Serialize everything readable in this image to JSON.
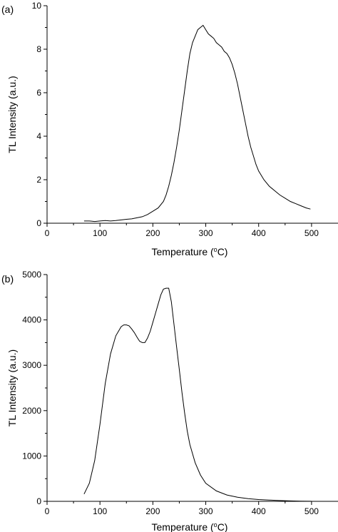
{
  "chart_data": [
    {
      "type": "line",
      "panel_label": "(a)",
      "xlabel_main": "Temperature (",
      "xlabel_sup": "o",
      "xlabel_tail": "C)",
      "ylabel": "TL Intensity (a.u.)",
      "xlim": [
        0,
        550
      ],
      "ylim": [
        0,
        10
      ],
      "xticks": [
        0,
        100,
        200,
        300,
        400,
        500
      ],
      "yticks": [
        0,
        2,
        4,
        6,
        8,
        10
      ],
      "grid": false,
      "series": [
        {
          "x": [
            70,
            80,
            90,
            100,
            110,
            120,
            130,
            140,
            150,
            160,
            170,
            180,
            190,
            200,
            210,
            220,
            225,
            230,
            235,
            240,
            245,
            250,
            255,
            260,
            265,
            270,
            275,
            280,
            285,
            290,
            295,
            300,
            305,
            310,
            315,
            320,
            325,
            330,
            335,
            340,
            345,
            350,
            355,
            360,
            365,
            370,
            375,
            380,
            385,
            390,
            395,
            400,
            410,
            420,
            430,
            440,
            450,
            460,
            470,
            480,
            490,
            498
          ],
          "y": [
            0.1,
            0.1,
            0.08,
            0.1,
            0.12,
            0.1,
            0.12,
            0.15,
            0.18,
            0.2,
            0.25,
            0.3,
            0.4,
            0.55,
            0.7,
            1.0,
            1.3,
            1.7,
            2.2,
            2.8,
            3.5,
            4.3,
            5.2,
            6.1,
            7.0,
            7.8,
            8.3,
            8.6,
            8.9,
            9.0,
            9.1,
            8.9,
            8.7,
            8.6,
            8.5,
            8.3,
            8.2,
            8.1,
            7.9,
            7.8,
            7.6,
            7.3,
            6.9,
            6.4,
            5.8,
            5.2,
            4.6,
            4.0,
            3.5,
            3.1,
            2.7,
            2.4,
            2.0,
            1.7,
            1.5,
            1.3,
            1.15,
            1.0,
            0.9,
            0.8,
            0.7,
            0.65
          ]
        }
      ]
    },
    {
      "type": "line",
      "panel_label": "(b)",
      "xlabel_main": "Temperature (",
      "xlabel_sup": "o",
      "xlabel_tail": "C)",
      "ylabel": "TL Intensity (a.u.)",
      "xlim": [
        0,
        550
      ],
      "ylim": [
        0,
        5000
      ],
      "xticks": [
        0,
        100,
        200,
        300,
        400,
        500
      ],
      "yticks": [
        0,
        1000,
        2000,
        3000,
        4000,
        5000
      ],
      "grid": false,
      "series": [
        {
          "x": [
            70,
            80,
            90,
            100,
            110,
            120,
            130,
            140,
            145,
            150,
            155,
            160,
            165,
            170,
            175,
            180,
            185,
            190,
            195,
            200,
            205,
            210,
            215,
            220,
            225,
            230,
            235,
            240,
            245,
            250,
            255,
            260,
            265,
            270,
            280,
            290,
            300,
            320,
            340,
            360,
            380,
            400,
            420,
            440,
            460,
            480,
            500
          ],
          "y": [
            160,
            400,
            900,
            1700,
            2600,
            3250,
            3650,
            3850,
            3890,
            3890,
            3870,
            3800,
            3720,
            3620,
            3530,
            3500,
            3500,
            3600,
            3750,
            3950,
            4150,
            4350,
            4550,
            4680,
            4700,
            4700,
            4400,
            3900,
            3400,
            2900,
            2400,
            1950,
            1550,
            1250,
            850,
            580,
            400,
            230,
            140,
            90,
            60,
            40,
            28,
            18,
            10,
            5,
            2
          ]
        }
      ]
    }
  ]
}
